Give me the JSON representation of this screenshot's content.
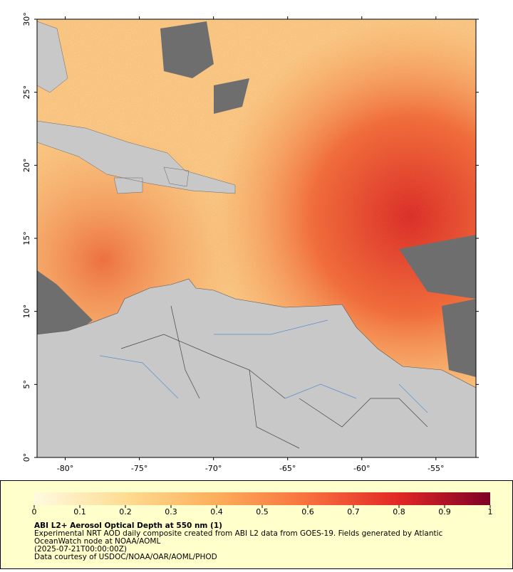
{
  "map": {
    "xlim": [
      -81.9,
      -52.3
    ],
    "ylim": [
      0,
      30
    ],
    "xticks": [
      {
        "value": -80,
        "label": "-80°"
      },
      {
        "value": -75,
        "label": "-75°"
      },
      {
        "value": -70,
        "label": "-70°"
      },
      {
        "value": -65,
        "label": "-65°"
      },
      {
        "value": -60,
        "label": "-60°"
      },
      {
        "value": -55,
        "label": "-55°"
      }
    ],
    "yticks": [
      {
        "value": 0,
        "label": "0°"
      },
      {
        "value": 5,
        "label": "5°"
      },
      {
        "value": 10,
        "label": "10°"
      },
      {
        "value": 15,
        "label": "15°"
      },
      {
        "value": 20,
        "label": "20°"
      },
      {
        "value": 25,
        "label": "25°"
      },
      {
        "value": 30,
        "label": "30°"
      }
    ]
  },
  "colorbar": {
    "range": [
      0,
      1
    ],
    "ticks": [
      0,
      0.1,
      0.2,
      0.3,
      0.4,
      0.5,
      0.6,
      0.7,
      0.8,
      0.9,
      1
    ]
  },
  "caption": {
    "title": "ABI L2+ Aerosol Optical Depth at 550 nm (1)",
    "lines": [
      "Experimental NRT AOD daily composite created from ABI L2 data from GOES-19. Fields generated by Atlantic",
      "OceanWatch node at NOAA/AOML",
      "(2025-07-21T00:00:00Z)",
      "Data courtesy of USDOC/NOAA/OAR/AOML/PHOD"
    ]
  }
}
